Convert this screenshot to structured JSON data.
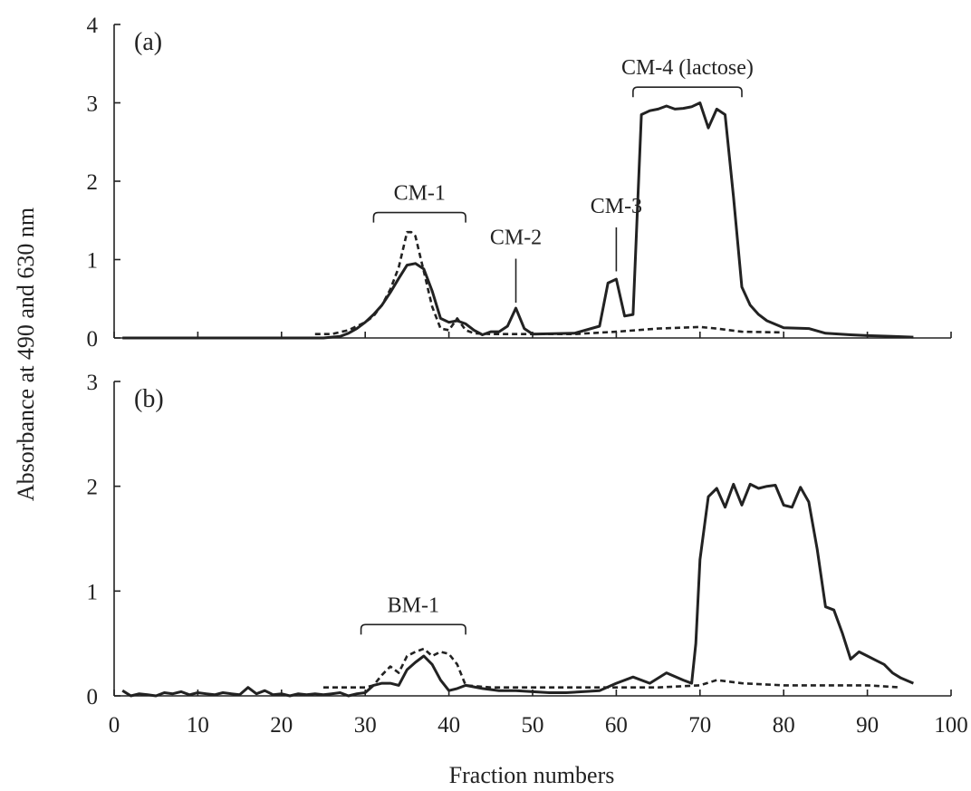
{
  "figure": {
    "ylabel": "Absorbance at 490 and 630 nm",
    "xlabel": "Fraction numbers"
  },
  "chart_data": [
    {
      "type": "line",
      "panel": "(a)",
      "xlim": [
        0,
        100
      ],
      "ylim": [
        0,
        4
      ],
      "xticks": [
        0,
        10,
        20,
        30,
        40,
        50,
        60,
        70,
        80,
        90,
        100
      ],
      "yticks": [
        0,
        1,
        2,
        3,
        4
      ],
      "xtick_labels_shown": false,
      "grid": false,
      "annotations": [
        {
          "text": "CM-1",
          "kind": "bracket",
          "x_start": 31,
          "x_end": 42,
          "y": 1.6
        },
        {
          "text": "CM-2",
          "kind": "pointer",
          "x": 48,
          "y_tip": 0.45,
          "y_text": 1.15
        },
        {
          "text": "CM-3",
          "kind": "pointer",
          "x": 60,
          "y_tip": 0.85,
          "y_text": 1.55
        },
        {
          "text": "CM-4 (lactose)",
          "kind": "bracket",
          "x_start": 62,
          "x_end": 75,
          "y": 3.2
        }
      ],
      "series": [
        {
          "style": "solid",
          "x": [
            1,
            25,
            27,
            28,
            29,
            30,
            31,
            32,
            33,
            34,
            35,
            36,
            37,
            38,
            39,
            40,
            41,
            42,
            43,
            44,
            45,
            46,
            47,
            48,
            49,
            50,
            55,
            58,
            59,
            60,
            61,
            62,
            63,
            64,
            65,
            66,
            67,
            68,
            69,
            70,
            71,
            72,
            73,
            74,
            75,
            76,
            77,
            78,
            80,
            83,
            85,
            88,
            90,
            93,
            95.5
          ],
          "y": [
            0,
            0,
            0.02,
            0.06,
            0.12,
            0.2,
            0.3,
            0.42,
            0.58,
            0.76,
            0.93,
            0.95,
            0.88,
            0.6,
            0.25,
            0.2,
            0.22,
            0.18,
            0.1,
            0.04,
            0.08,
            0.08,
            0.15,
            0.38,
            0.12,
            0.05,
            0.06,
            0.15,
            0.7,
            0.75,
            0.28,
            0.3,
            2.85,
            2.9,
            2.92,
            2.96,
            2.92,
            2.93,
            2.95,
            3.0,
            2.68,
            2.92,
            2.85,
            1.8,
            0.65,
            0.42,
            0.3,
            0.22,
            0.13,
            0.12,
            0.06,
            0.04,
            0.03,
            0.02,
            0.01
          ]
        },
        {
          "style": "dashed",
          "x": [
            24,
            26,
            28,
            30,
            31,
            32,
            33,
            34,
            35,
            35.5,
            36,
            37,
            38,
            39,
            40,
            41,
            42,
            43,
            45,
            50,
            55,
            60,
            65,
            70,
            72,
            75,
            80
          ],
          "y": [
            0.05,
            0.05,
            0.1,
            0.2,
            0.28,
            0.42,
            0.62,
            0.9,
            1.35,
            1.35,
            1.3,
            0.85,
            0.4,
            0.12,
            0.1,
            0.25,
            0.1,
            0.06,
            0.05,
            0.05,
            0.05,
            0.08,
            0.12,
            0.14,
            0.12,
            0.08,
            0.07
          ]
        }
      ]
    },
    {
      "type": "line",
      "panel": "(b)",
      "xlim": [
        0,
        100
      ],
      "ylim": [
        0,
        3
      ],
      "xticks": [
        0,
        10,
        20,
        30,
        40,
        50,
        60,
        70,
        80,
        90,
        100
      ],
      "xtick_labels": [
        "0",
        "10",
        "20",
        "30",
        "40",
        "50",
        "60",
        "70",
        "80",
        "90",
        "100"
      ],
      "yticks": [
        0,
        1,
        2,
        3
      ],
      "grid": false,
      "annotations": [
        {
          "text": "BM-1",
          "kind": "bracket",
          "x_start": 29.5,
          "x_end": 42,
          "y": 0.68
        }
      ],
      "series": [
        {
          "style": "solid",
          "x": [
            1,
            2,
            3,
            4,
            5,
            6,
            7,
            8,
            9,
            10,
            11,
            12,
            13,
            14,
            15,
            16,
            17,
            18,
            19,
            20,
            21,
            22,
            23,
            24,
            25,
            26,
            27,
            28,
            29,
            30,
            31,
            32,
            33,
            34,
            35,
            36,
            37,
            38,
            39,
            40,
            41,
            42,
            44,
            46,
            48,
            50,
            52,
            54,
            56,
            58,
            60,
            62,
            64,
            66,
            68,
            69,
            69.5,
            70,
            71,
            72,
            73,
            74,
            75,
            76,
            77,
            78,
            79,
            80,
            81,
            82,
            83,
            84,
            85,
            86,
            87,
            88,
            89,
            90,
            91,
            92,
            93,
            94,
            95.5
          ],
          "y": [
            0.05,
            0.0,
            0.02,
            0.01,
            0.0,
            0.03,
            0.02,
            0.04,
            0.01,
            0.03,
            0.02,
            0.01,
            0.03,
            0.02,
            0.01,
            0.08,
            0.02,
            0.05,
            0.01,
            0.02,
            0.0,
            0.02,
            0.01,
            0.02,
            0.01,
            0.02,
            0.03,
            0.0,
            0.02,
            0.03,
            0.1,
            0.12,
            0.12,
            0.1,
            0.25,
            0.32,
            0.38,
            0.3,
            0.15,
            0.05,
            0.07,
            0.1,
            0.07,
            0.05,
            0.05,
            0.04,
            0.03,
            0.03,
            0.04,
            0.05,
            0.12,
            0.18,
            0.12,
            0.22,
            0.15,
            0.12,
            0.5,
            1.3,
            1.9,
            1.98,
            1.8,
            2.02,
            1.82,
            2.02,
            1.98,
            2.0,
            2.01,
            1.82,
            1.8,
            1.99,
            1.85,
            1.4,
            0.85,
            0.82,
            0.6,
            0.35,
            0.42,
            0.38,
            0.34,
            0.3,
            0.22,
            0.17,
            0.12
          ]
        },
        {
          "style": "dashed",
          "x": [
            25,
            30,
            31,
            32,
            33,
            34,
            35,
            36,
            37,
            38,
            39,
            40,
            41,
            42,
            45,
            50,
            55,
            60,
            65,
            70,
            72,
            75,
            80,
            85,
            90,
            94
          ],
          "y": [
            0.08,
            0.08,
            0.1,
            0.2,
            0.28,
            0.22,
            0.38,
            0.42,
            0.45,
            0.38,
            0.42,
            0.4,
            0.3,
            0.1,
            0.08,
            0.08,
            0.08,
            0.08,
            0.08,
            0.1,
            0.15,
            0.12,
            0.1,
            0.1,
            0.1,
            0.08
          ]
        }
      ]
    }
  ]
}
